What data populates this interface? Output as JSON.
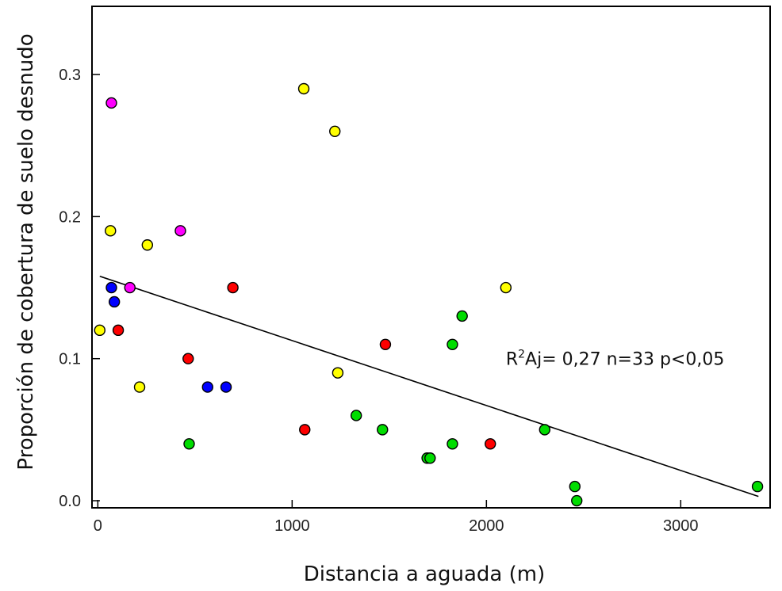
{
  "chart_data": {
    "type": "scatter",
    "title": "",
    "xlabel": "Distancia a aguada (m)",
    "ylabel": "Proporción de cobertura de suelo desnudo",
    "xlim": [
      -30,
      3460
    ],
    "ylim": [
      -0.005,
      0.348
    ],
    "xticks": [
      0,
      1000,
      2000,
      3000
    ],
    "xtick_labels": [
      "0",
      "1000",
      "2000",
      "3000"
    ],
    "yticks": [
      0.0,
      0.1,
      0.2,
      0.3
    ],
    "ytick_labels": [
      "0.0",
      "0.1",
      "0.2",
      "0.3"
    ],
    "grid": false,
    "annotation": {
      "prefix": "R",
      "sup": "2",
      "suffix": "Aj= 0,27 n=33 p<0,05",
      "x": 2100,
      "y": 0.1
    },
    "trendline": {
      "x": [
        10,
        3400
      ],
      "y": [
        0.158,
        0.003
      ]
    },
    "colors": {
      "yellow": "#ffff00",
      "magenta": "#ff00ff",
      "blue": "#0000ff",
      "red": "#ff0000",
      "green": "#00dd00"
    },
    "points": [
      {
        "x": 10,
        "y": 0.12,
        "color": "yellow"
      },
      {
        "x": 65,
        "y": 0.19,
        "color": "yellow"
      },
      {
        "x": 215,
        "y": 0.08,
        "color": "yellow"
      },
      {
        "x": 255,
        "y": 0.18,
        "color": "yellow"
      },
      {
        "x": 1060,
        "y": 0.29,
        "color": "yellow"
      },
      {
        "x": 1220,
        "y": 0.26,
        "color": "yellow"
      },
      {
        "x": 1235,
        "y": 0.09,
        "color": "yellow"
      },
      {
        "x": 2100,
        "y": 0.15,
        "color": "yellow"
      },
      {
        "x": 70,
        "y": 0.28,
        "color": "magenta"
      },
      {
        "x": 165,
        "y": 0.15,
        "color": "magenta"
      },
      {
        "x": 425,
        "y": 0.19,
        "color": "magenta"
      },
      {
        "x": 70,
        "y": 0.15,
        "color": "blue"
      },
      {
        "x": 85,
        "y": 0.14,
        "color": "blue"
      },
      {
        "x": 565,
        "y": 0.08,
        "color": "blue"
      },
      {
        "x": 660,
        "y": 0.08,
        "color": "blue"
      },
      {
        "x": 105,
        "y": 0.12,
        "color": "red"
      },
      {
        "x": 465,
        "y": 0.1,
        "color": "red"
      },
      {
        "x": 695,
        "y": 0.15,
        "color": "red"
      },
      {
        "x": 1065,
        "y": 0.05,
        "color": "red"
      },
      {
        "x": 1480,
        "y": 0.11,
        "color": "red"
      },
      {
        "x": 2020,
        "y": 0.04,
        "color": "red"
      },
      {
        "x": 470,
        "y": 0.04,
        "color": "green"
      },
      {
        "x": 1330,
        "y": 0.06,
        "color": "green"
      },
      {
        "x": 1465,
        "y": 0.05,
        "color": "green"
      },
      {
        "x": 1695,
        "y": 0.03,
        "color": "green"
      },
      {
        "x": 1710,
        "y": 0.03,
        "color": "green"
      },
      {
        "x": 1825,
        "y": 0.04,
        "color": "green"
      },
      {
        "x": 1825,
        "y": 0.11,
        "color": "green"
      },
      {
        "x": 1875,
        "y": 0.13,
        "color": "green"
      },
      {
        "x": 2300,
        "y": 0.05,
        "color": "green"
      },
      {
        "x": 2455,
        "y": 0.01,
        "color": "green"
      },
      {
        "x": 2465,
        "y": 0.0,
        "color": "green"
      },
      {
        "x": 3395,
        "y": 0.01,
        "color": "green"
      }
    ]
  }
}
